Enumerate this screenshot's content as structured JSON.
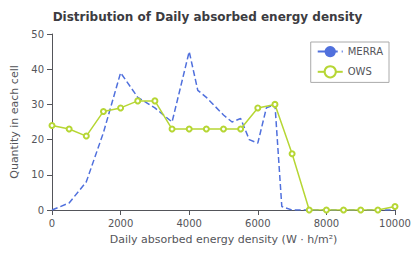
{
  "chart_data": {
    "type": "line",
    "title": "Distribution of Daily absorbed energy density",
    "xlabel": "Daily absorbed energy density (W · h/m²)",
    "ylabel": "Quantity in each cell",
    "xlim": [
      0,
      10000
    ],
    "ylim": [
      0,
      50
    ],
    "xticks": [
      0,
      2000,
      4000,
      6000,
      8000,
      10000
    ],
    "yticks": [
      0,
      10,
      20,
      30,
      40,
      50
    ],
    "grid": false,
    "legend": "upper right",
    "series": [
      {
        "name": "MERRA",
        "line_style": "dashed",
        "marker": "none",
        "x": [
          0,
          500,
          1000,
          1500,
          2000,
          2500,
          3000,
          3500,
          4000,
          4250,
          4500,
          5000,
          5250,
          5500,
          5750,
          6000,
          6250,
          6500,
          6700,
          7000,
          7500,
          8000,
          8500,
          9000,
          9500,
          10000
        ],
        "values": [
          0,
          2,
          8,
          22,
          39,
          32,
          29,
          25,
          45,
          34,
          32,
          27,
          25,
          26,
          20,
          19,
          29,
          30,
          1,
          0,
          0,
          0,
          0,
          0,
          0,
          0
        ]
      },
      {
        "name": "OWS",
        "line_style": "solid",
        "marker": "circle",
        "x": [
          0,
          500,
          1000,
          1500,
          2000,
          2500,
          3000,
          3500,
          4000,
          4500,
          5000,
          5500,
          6000,
          6500,
          7000,
          7500,
          8000,
          8500,
          9000,
          9500,
          10000
        ],
        "values": [
          24,
          23,
          21,
          28,
          29,
          31,
          31,
          23,
          23,
          23,
          23,
          23,
          29,
          30,
          16,
          0,
          0,
          0,
          0,
          0,
          1
        ]
      }
    ]
  }
}
